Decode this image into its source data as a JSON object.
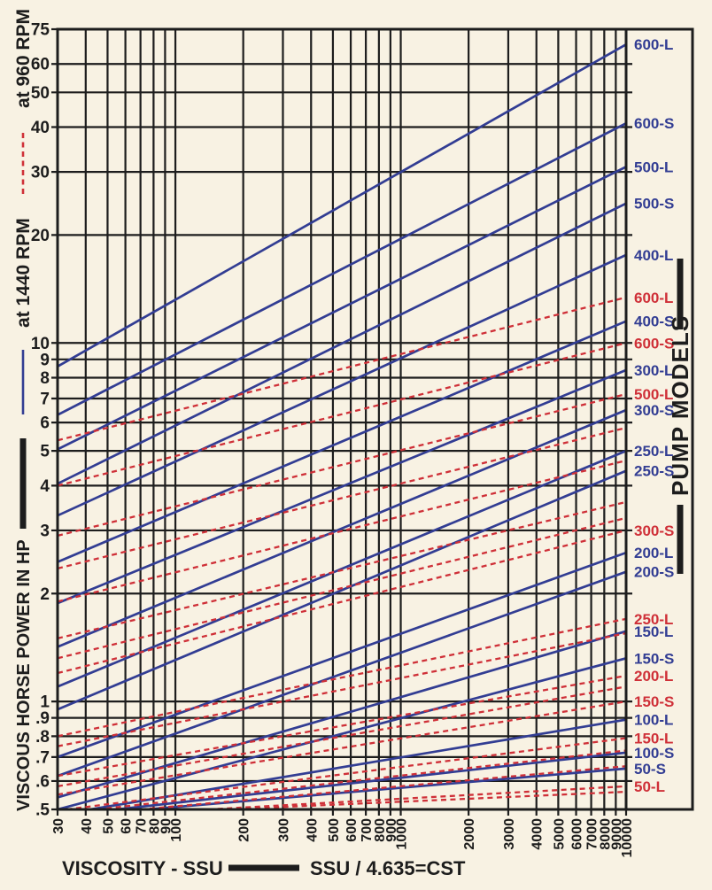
{
  "palette": {
    "paper": "#f8f2e3",
    "ink": "#1d1d1d",
    "blue": "#323d93",
    "red": "#cf3038"
  },
  "legend": {
    "dashed_label": "at 960 RPM",
    "solid_label": "at 1440 RPM"
  },
  "axes": {
    "y_title": "VISCOUS HORSE POWER IN HP",
    "x_title": "VISCOSITY - SSU",
    "conversion_note": "SSU / 4.635=CST"
  },
  "right_panel": {
    "title": "PUMP MODELS"
  },
  "chart_data": {
    "type": "line",
    "x_scale": "log",
    "y_scale": "log",
    "xlim": [
      30,
      10000
    ],
    "ylim": [
      0.5,
      75
    ],
    "xlabel": "VISCOSITY - SSU",
    "ylabel": "VISCOUS HORSE POWER IN HP",
    "grid": true,
    "legend_position": "left-margin",
    "x_ticks": [
      30,
      40,
      50,
      60,
      70,
      80,
      90,
      100,
      200,
      300,
      400,
      500,
      600,
      700,
      800,
      900,
      1000,
      2000,
      3000,
      4000,
      5000,
      6000,
      7000,
      8000,
      9000,
      10000
    ],
    "y_ticks": [
      {
        "v": 75,
        "label": "75"
      },
      {
        "v": 60,
        "label": "60"
      },
      {
        "v": 50,
        "label": "50"
      },
      {
        "v": 40,
        "label": "40"
      },
      {
        "v": 30,
        "label": "30"
      },
      {
        "v": 20,
        "label": "20"
      },
      {
        "v": 10,
        "label": "10"
      },
      {
        "v": 9,
        "label": "9"
      },
      {
        "v": 8,
        "label": "8"
      },
      {
        "v": 7,
        "label": "7"
      },
      {
        "v": 6,
        "label": "6"
      },
      {
        "v": 5,
        "label": "5"
      },
      {
        "v": 4,
        "label": "4"
      },
      {
        "v": 3,
        "label": "3"
      },
      {
        "v": 2,
        "label": "2"
      },
      {
        "v": 1,
        "label": "1"
      },
      {
        "v": 0.9,
        "label": ".9"
      },
      {
        "v": 0.8,
        "label": ".8"
      },
      {
        "v": 0.7,
        "label": ".7"
      },
      {
        "v": 0.6,
        "label": ".6"
      },
      {
        "v": 0.5,
        "label": ".5"
      }
    ],
    "series": [
      {
        "model": "600-L",
        "rpm": "1440 RPM",
        "style": "solid",
        "color": "blue",
        "labeled": true,
        "points": [
          [
            30,
            8.6
          ],
          [
            10000,
            68
          ]
        ]
      },
      {
        "model": "600-S",
        "rpm": "1440 RPM",
        "style": "solid",
        "color": "blue",
        "labeled": true,
        "points": [
          [
            30,
            6.3
          ],
          [
            10000,
            41
          ]
        ]
      },
      {
        "model": "500-L",
        "rpm": "1440 RPM",
        "style": "solid",
        "color": "blue",
        "labeled": true,
        "points": [
          [
            30,
            5.05
          ],
          [
            10000,
            31
          ]
        ]
      },
      {
        "model": "500-S",
        "rpm": "1440 RPM",
        "style": "solid",
        "color": "blue",
        "labeled": true,
        "points": [
          [
            30,
            4.05
          ],
          [
            10000,
            24.5
          ]
        ]
      },
      {
        "model": "400-L",
        "rpm": "1440 RPM",
        "style": "solid",
        "color": "blue",
        "labeled": true,
        "points": [
          [
            30,
            3.3
          ],
          [
            10000,
            17.6
          ]
        ]
      },
      {
        "model": "400-S",
        "rpm": "1440 RPM",
        "style": "solid",
        "color": "blue",
        "labeled": true,
        "points": [
          [
            30,
            2.45
          ],
          [
            10000,
            11.5
          ]
        ]
      },
      {
        "model": "300-L",
        "rpm": "1440 RPM",
        "style": "solid",
        "color": "blue",
        "labeled": true,
        "points": [
          [
            30,
            1.88
          ],
          [
            10000,
            8.4
          ]
        ]
      },
      {
        "model": "300-S",
        "rpm": "1440 RPM",
        "style": "solid",
        "color": "blue",
        "labeled": true,
        "points": [
          [
            30,
            1.42
          ],
          [
            10000,
            6.5
          ]
        ]
      },
      {
        "model": "250-L",
        "rpm": "1440 RPM",
        "style": "solid",
        "color": "blue",
        "labeled": true,
        "points": [
          [
            30,
            1.1
          ],
          [
            10000,
            5.0
          ]
        ]
      },
      {
        "model": "250-S",
        "rpm": "1440 RPM",
        "style": "solid",
        "color": "blue",
        "labeled": true,
        "points": [
          [
            30,
            0.95
          ],
          [
            10000,
            4.4
          ]
        ]
      },
      {
        "model": "200-L",
        "rpm": "1440 RPM",
        "style": "solid",
        "color": "blue",
        "labeled": true,
        "points": [
          [
            30,
            0.7
          ],
          [
            10000,
            2.6
          ]
        ]
      },
      {
        "model": "200-S",
        "rpm": "1440 RPM",
        "style": "solid",
        "color": "blue",
        "labeled": true,
        "points": [
          [
            30,
            0.62
          ],
          [
            10000,
            2.3
          ]
        ]
      },
      {
        "model": "150-L",
        "rpm": "1440 RPM",
        "style": "solid",
        "color": "blue",
        "labeled": true,
        "points": [
          [
            30,
            0.54
          ],
          [
            10000,
            1.57
          ]
        ]
      },
      {
        "model": "150-S",
        "rpm": "1440 RPM",
        "style": "solid",
        "color": "blue",
        "labeled": true,
        "points": [
          [
            30,
            0.5
          ],
          [
            10000,
            1.32
          ]
        ]
      },
      {
        "model": "100-L",
        "rpm": "1440 RPM",
        "style": "solid",
        "color": "blue",
        "labeled": true,
        "points": [
          [
            42,
            0.5
          ],
          [
            10000,
            0.89
          ]
        ]
      },
      {
        "model": "100-S",
        "rpm": "1440 RPM",
        "style": "solid",
        "color": "blue",
        "labeled": true,
        "points": [
          [
            55,
            0.5
          ],
          [
            10000,
            0.72
          ]
        ]
      },
      {
        "model": "50-S",
        "rpm": "1440 RPM",
        "style": "solid",
        "color": "blue",
        "labeled": true,
        "points": [
          [
            75,
            0.5
          ],
          [
            10000,
            0.65
          ]
        ]
      },
      {
        "model": "600-L",
        "rpm": "960 RPM",
        "style": "dashed",
        "color": "red",
        "labeled": true,
        "points": [
          [
            30,
            5.35
          ],
          [
            10000,
            13.4
          ]
        ]
      },
      {
        "model": "600-S",
        "rpm": "960 RPM",
        "style": "dashed",
        "color": "red",
        "labeled": true,
        "points": [
          [
            30,
            4.0
          ],
          [
            10000,
            10.0
          ]
        ]
      },
      {
        "model": "500-L",
        "rpm": "960 RPM",
        "style": "dashed",
        "color": "red",
        "labeled": true,
        "points": [
          [
            30,
            2.9
          ],
          [
            10000,
            7.2
          ]
        ]
      },
      {
        "model": "500-S",
        "rpm": "960 RPM",
        "style": "dashed",
        "color": "red",
        "labeled": false,
        "points": [
          [
            30,
            2.35
          ],
          [
            10000,
            5.8
          ]
        ]
      },
      {
        "model": "400-L",
        "rpm": "960 RPM",
        "style": "dashed",
        "color": "red",
        "labeled": false,
        "points": [
          [
            30,
            1.9
          ],
          [
            10000,
            4.7
          ]
        ]
      },
      {
        "model": "400-S",
        "rpm": "960 RPM",
        "style": "dashed",
        "color": "red",
        "labeled": false,
        "points": [
          [
            30,
            1.5
          ],
          [
            10000,
            3.6
          ]
        ]
      },
      {
        "model": "300-L",
        "rpm": "960 RPM",
        "style": "dashed",
        "color": "red",
        "labeled": false,
        "points": [
          [
            30,
            1.32
          ],
          [
            10000,
            3.25
          ]
        ]
      },
      {
        "model": "300-S",
        "rpm": "960 RPM",
        "style": "dashed",
        "color": "red",
        "labeled": true,
        "points": [
          [
            30,
            1.2
          ],
          [
            10000,
            3.0
          ]
        ]
      },
      {
        "model": "250-L",
        "rpm": "960 RPM",
        "style": "dashed",
        "color": "red",
        "labeled": true,
        "points": [
          [
            30,
            0.8
          ],
          [
            10000,
            1.7
          ]
        ]
      },
      {
        "model": "250-S",
        "rpm": "960 RPM",
        "style": "dashed",
        "color": "red",
        "labeled": false,
        "points": [
          [
            30,
            0.75
          ],
          [
            10000,
            1.55
          ]
        ]
      },
      {
        "model": "200-L",
        "rpm": "960 RPM",
        "style": "dashed",
        "color": "red",
        "labeled": true,
        "points": [
          [
            30,
            0.62
          ],
          [
            10000,
            1.18
          ]
        ]
      },
      {
        "model": "200-S",
        "rpm": "960 RPM",
        "style": "dashed",
        "color": "red",
        "labeled": false,
        "points": [
          [
            30,
            0.58
          ],
          [
            10000,
            1.1
          ]
        ]
      },
      {
        "model": "150-S",
        "rpm": "960 RPM",
        "style": "dashed",
        "color": "red",
        "labeled": true,
        "points": [
          [
            30,
            0.55
          ],
          [
            10000,
            1.0
          ]
        ]
      },
      {
        "model": "150-L",
        "rpm": "960 RPM",
        "style": "dashed",
        "color": "red",
        "labeled": true,
        "points": [
          [
            33,
            0.5
          ],
          [
            10000,
            0.79
          ]
        ]
      },
      {
        "model": "100-L",
        "rpm": "960 RPM",
        "style": "dashed",
        "color": "red",
        "labeled": false,
        "points": [
          [
            45,
            0.5
          ],
          [
            10000,
            0.73
          ]
        ]
      },
      {
        "model": "100-S",
        "rpm": "960 RPM",
        "style": "dashed",
        "color": "red",
        "labeled": false,
        "points": [
          [
            70,
            0.5
          ],
          [
            10000,
            0.66
          ]
        ]
      },
      {
        "model": "50-L",
        "rpm": "960 RPM",
        "style": "dashed",
        "color": "red",
        "labeled": true,
        "points": [
          [
            140,
            0.5
          ],
          [
            10000,
            0.58
          ]
        ]
      },
      {
        "model": "50-S",
        "rpm": "960 RPM",
        "style": "dashed",
        "color": "red",
        "labeled": false,
        "points": [
          [
            170,
            0.5
          ],
          [
            10000,
            0.56
          ]
        ]
      }
    ],
    "right_labels": [
      {
        "text": "600-L",
        "color": "blue",
        "hp": 68
      },
      {
        "text": "600-S",
        "color": "blue",
        "hp": 41
      },
      {
        "text": "500-L",
        "color": "blue",
        "hp": 31
      },
      {
        "text": "500-S",
        "color": "blue",
        "hp": 24.5
      },
      {
        "text": "400-L",
        "color": "blue",
        "hp": 17.6
      },
      {
        "text": "600-L",
        "color": "red",
        "hp": 13.4
      },
      {
        "text": "400-S",
        "color": "blue",
        "hp": 11.5
      },
      {
        "text": "600-S",
        "color": "red",
        "hp": 10.0
      },
      {
        "text": "300-L",
        "color": "blue",
        "hp": 8.4
      },
      {
        "text": "500-L",
        "color": "red",
        "hp": 7.2
      },
      {
        "text": "300-S",
        "color": "blue",
        "hp": 6.5
      },
      {
        "text": "250-L",
        "color": "blue",
        "hp": 5.0
      },
      {
        "text": "250-S",
        "color": "blue",
        "hp": 4.4
      },
      {
        "text": "300-S",
        "color": "red",
        "hp": 3.0
      },
      {
        "text": "200-L",
        "color": "blue",
        "hp": 2.6
      },
      {
        "text": "200-S",
        "color": "blue",
        "hp": 2.3
      },
      {
        "text": "250-L",
        "color": "red",
        "hp": 1.7
      },
      {
        "text": "150-L",
        "color": "blue",
        "hp": 1.57
      },
      {
        "text": "150-S",
        "color": "blue",
        "hp": 1.32
      },
      {
        "text": "200-L",
        "color": "red",
        "hp": 1.18
      },
      {
        "text": "150-S",
        "color": "red",
        "hp": 1.0
      },
      {
        "text": "100-L",
        "color": "blue",
        "hp": 0.89
      },
      {
        "text": "150-L",
        "color": "red",
        "hp": 0.79
      },
      {
        "text": "100-S",
        "color": "blue",
        "hp": 0.72
      },
      {
        "text": "50-S",
        "color": "blue",
        "hp": 0.65
      },
      {
        "text": "50-L",
        "color": "red",
        "hp": 0.58
      }
    ]
  }
}
